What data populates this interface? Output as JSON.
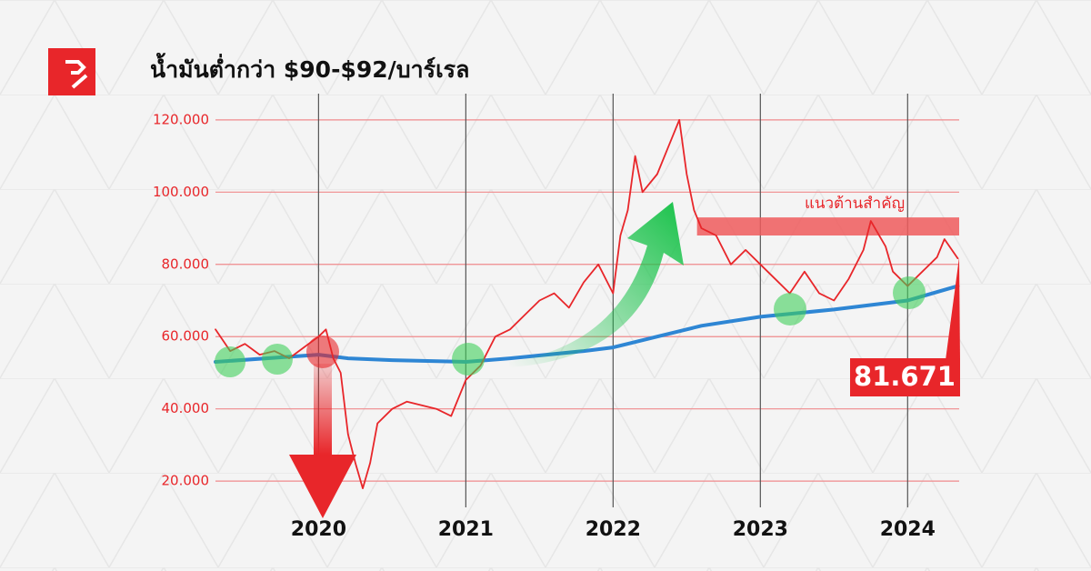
{
  "chart_data": {
    "type": "line",
    "title": "น้ำมันต่ำกว่า $90-$92/บาร์เรล",
    "xlim": [
      2019.3,
      2024.35
    ],
    "xticks": [
      2020,
      2021,
      2022,
      2023,
      2024
    ],
    "ylim": [
      15,
      125
    ],
    "yticks": [
      {
        "value": 20,
        "label": "20.000"
      },
      {
        "value": 40,
        "label": "40.000"
      },
      {
        "value": 60,
        "label": "60.000"
      },
      {
        "value": 80,
        "label": "80.000"
      },
      {
        "value": 100,
        "label": "100.000"
      },
      {
        "value": 120,
        "label": "120.000"
      }
    ],
    "grid": true,
    "resistance": {
      "label": "แนวต้านสำคัญ",
      "range": [
        88,
        93
      ],
      "color": "#ee5a5c"
    },
    "series": [
      {
        "color": "#e8262a",
        "x": [
          2019.3,
          2019.4,
          2019.5,
          2019.6,
          2019.7,
          2019.8,
          2019.9,
          2020.0,
          2020.05,
          2020.1,
          2020.15,
          2020.2,
          2020.25,
          2020.3,
          2020.35,
          2020.4,
          2020.5,
          2020.6,
          2020.7,
          2020.8,
          2020.9,
          2021.0,
          2021.1,
          2021.2,
          2021.3,
          2021.4,
          2021.5,
          2021.6,
          2021.7,
          2021.8,
          2021.9,
          2022.0,
          2022.05,
          2022.1,
          2022.15,
          2022.2,
          2022.3,
          2022.4,
          2022.45,
          2022.5,
          2022.55,
          2022.6,
          2022.7,
          2022.8,
          2022.9,
          2023.0,
          2023.1,
          2023.2,
          2023.3,
          2023.4,
          2023.5,
          2023.6,
          2023.7,
          2023.75,
          2023.85,
          2023.9,
          2024.0,
          2024.1,
          2024.2,
          2024.25,
          2024.34
        ],
        "values": [
          62,
          56,
          58,
          55,
          56,
          54,
          57,
          60,
          62,
          54,
          50,
          33,
          25,
          18,
          25,
          36,
          40,
          42,
          41,
          40,
          38,
          48,
          52,
          60,
          62,
          66,
          70,
          72,
          68,
          75,
          80,
          72,
          88,
          95,
          110,
          100,
          105,
          115,
          120,
          105,
          95,
          90,
          88,
          80,
          84,
          80,
          76,
          72,
          78,
          72,
          70,
          76,
          84,
          92,
          85,
          78,
          74,
          78,
          82,
          87,
          81.671
        ]
      },
      {
        "color": "#2e86d4",
        "x": [
          2019.3,
          2020.0,
          2020.2,
          2020.5,
          2021.0,
          2021.3,
          2021.8,
          2022.0,
          2022.3,
          2022.6,
          2023.0,
          2023.5,
          2024.0,
          2024.34
        ],
        "values": [
          53,
          55,
          54,
          53.5,
          53,
          54,
          56,
          57,
          60,
          63,
          65.5,
          67.5,
          70,
          74
        ]
      }
    ]
  }
}
